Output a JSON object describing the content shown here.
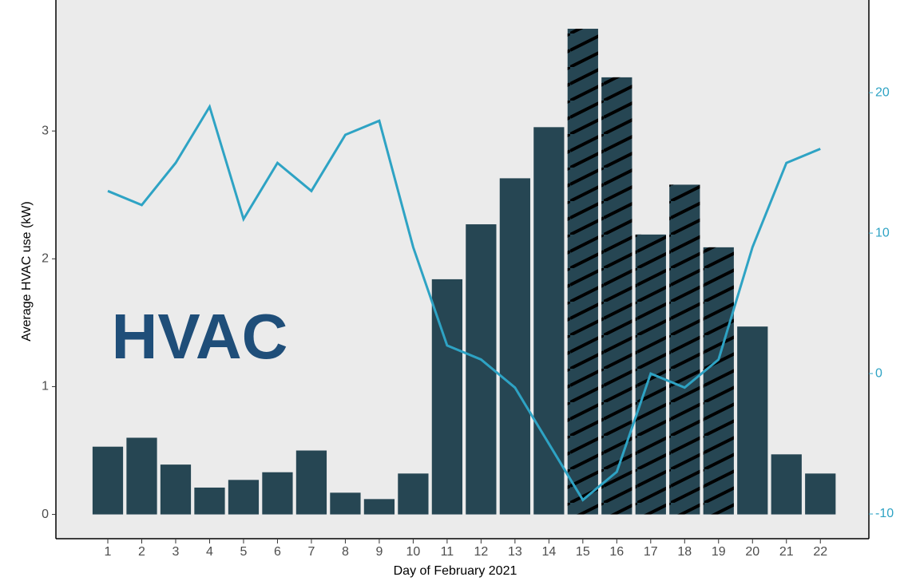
{
  "chart_data": {
    "type": "bar",
    "annotation": "HVAC",
    "x_label": "Day of February 2021",
    "y_label": "Average HVAC use (kW)",
    "x": [
      1,
      2,
      3,
      4,
      5,
      6,
      7,
      8,
      9,
      10,
      11,
      12,
      13,
      14,
      15,
      16,
      17,
      18,
      19,
      20,
      21,
      22
    ],
    "xlim": [
      -0.53,
      23.43
    ],
    "xticks": [
      1,
      2,
      3,
      4,
      5,
      6,
      7,
      8,
      9,
      10,
      11,
      12,
      13,
      14,
      15,
      16,
      17,
      18,
      19,
      20,
      21,
      22
    ],
    "ylim": [
      -0.19,
      4.025
    ],
    "yticks": [
      0,
      1,
      2,
      3
    ],
    "y2lim": [
      -11.76,
      26.6
    ],
    "y2ticks": [
      -10,
      0,
      10,
      20
    ],
    "series": [
      {
        "type": "bar",
        "color": "#264653",
        "values": [
          0.53,
          0.6,
          0.39,
          0.21,
          0.27,
          0.33,
          0.5,
          0.17,
          0.12,
          0.32,
          1.84,
          2.27,
          2.63,
          3.03,
          3.8,
          3.42,
          2.19,
          2.58,
          2.09,
          1.47,
          0.47,
          0.32
        ],
        "hatched": [
          false,
          false,
          false,
          false,
          false,
          false,
          false,
          false,
          false,
          false,
          false,
          false,
          false,
          false,
          true,
          true,
          true,
          true,
          true,
          false,
          false,
          false
        ]
      },
      {
        "type": "line",
        "axis": "y2",
        "color": "#2ea3c4",
        "values": [
          13,
          12,
          15,
          19,
          11,
          15,
          13,
          17,
          18,
          9,
          2,
          1,
          -1,
          -5,
          -9,
          -7,
          0,
          -1,
          1,
          9,
          15,
          16
        ]
      }
    ]
  }
}
